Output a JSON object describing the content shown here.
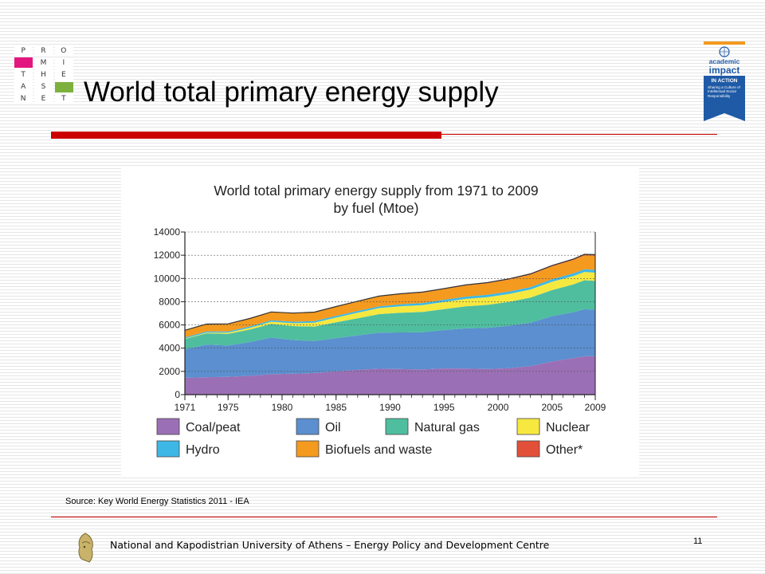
{
  "logo": {
    "cells": [
      "P",
      "R",
      "O",
      "",
      "M",
      "I",
      "T",
      "H",
      "E",
      "A",
      "S",
      "",
      "N",
      "E",
      "T"
    ]
  },
  "slide": {
    "title": "World total primary energy supply",
    "source": "Source: Key World Energy Statistics 2011 - IEA",
    "footer": "National and Kapodistrian University of Athens – Energy Policy and Development Centre",
    "page_number": "11"
  },
  "badge": {
    "line1": "academic",
    "line2": "impact",
    "line3": "IN ACTION",
    "tagline": "Sharing a Culture of Intellectual Social Responsibility"
  },
  "colors": {
    "accent_red": "#cc0000",
    "badge_blue": "#1f5aa6"
  },
  "chart_data": {
    "type": "area",
    "stacked": true,
    "title": "World total primary energy supply from 1971 to 2009",
    "subtitle": "by fuel (Mtoe)",
    "ylim": [
      0,
      14000
    ],
    "xlim": [
      1971,
      2009
    ],
    "yticks": [
      0,
      2000,
      4000,
      6000,
      8000,
      10000,
      12000,
      14000
    ],
    "ytick_labels": [
      "0",
      "2000",
      "4000",
      "6000",
      "8000",
      "10000",
      "12000",
      "14000"
    ],
    "xtick_labels": [
      "1971",
      "1975",
      "1980",
      "1985",
      "1990",
      "1995",
      "2000",
      "2005",
      "2009"
    ],
    "xticks": [
      1971,
      1975,
      1980,
      1985,
      1990,
      1995,
      2000,
      2005,
      2009
    ],
    "grid": true,
    "legend_position": "bottom",
    "x": [
      1971,
      1973,
      1975,
      1977,
      1979,
      1981,
      1983,
      1985,
      1987,
      1989,
      1991,
      1993,
      1995,
      1997,
      1999,
      2001,
      2003,
      2005,
      2007,
      2008,
      2009
    ],
    "series": [
      {
        "name": "Coal/peat",
        "color": "#9b6fb5",
        "values": [
          1450,
          1500,
          1530,
          1620,
          1760,
          1800,
          1860,
          2000,
          2140,
          2230,
          2200,
          2170,
          2260,
          2250,
          2200,
          2280,
          2450,
          2850,
          3150,
          3300,
          3300
        ]
      },
      {
        "name": "Oil",
        "color": "#5b8fcf",
        "values": [
          2450,
          2800,
          2700,
          2900,
          3150,
          2900,
          2750,
          2850,
          2950,
          3100,
          3150,
          3200,
          3300,
          3450,
          3550,
          3650,
          3750,
          3900,
          3950,
          4050,
          4000
        ]
      },
      {
        "name": "Natural gas",
        "color": "#4fbe9f",
        "values": [
          900,
          980,
          1000,
          1080,
          1180,
          1200,
          1250,
          1380,
          1480,
          1600,
          1700,
          1750,
          1800,
          1900,
          1980,
          2050,
          2150,
          2250,
          2400,
          2500,
          2500
        ]
      },
      {
        "name": "Nuclear",
        "color": "#f7e840",
        "values": [
          30,
          50,
          100,
          150,
          190,
          250,
          330,
          400,
          480,
          520,
          560,
          590,
          620,
          640,
          660,
          690,
          700,
          720,
          720,
          710,
          700
        ]
      },
      {
        "name": "Hydro",
        "color": "#3db8e6",
        "values": [
          100,
          105,
          110,
          115,
          125,
          130,
          140,
          145,
          150,
          155,
          165,
          175,
          185,
          195,
          200,
          205,
          210,
          220,
          230,
          235,
          240
        ]
      },
      {
        "name": "Biofuels and waste",
        "color": "#f39a1f",
        "values": [
          600,
          630,
          650,
          680,
          700,
          730,
          760,
          790,
          820,
          850,
          880,
          900,
          920,
          960,
          1000,
          1030,
          1070,
          1100,
          1150,
          1190,
          1210
        ]
      },
      {
        "name": "Other*",
        "color": "#e2503a",
        "values": [
          5,
          6,
          7,
          8,
          10,
          12,
          15,
          20,
          25,
          30,
          35,
          40,
          45,
          50,
          55,
          60,
          65,
          70,
          80,
          90,
          100
        ]
      }
    ]
  }
}
